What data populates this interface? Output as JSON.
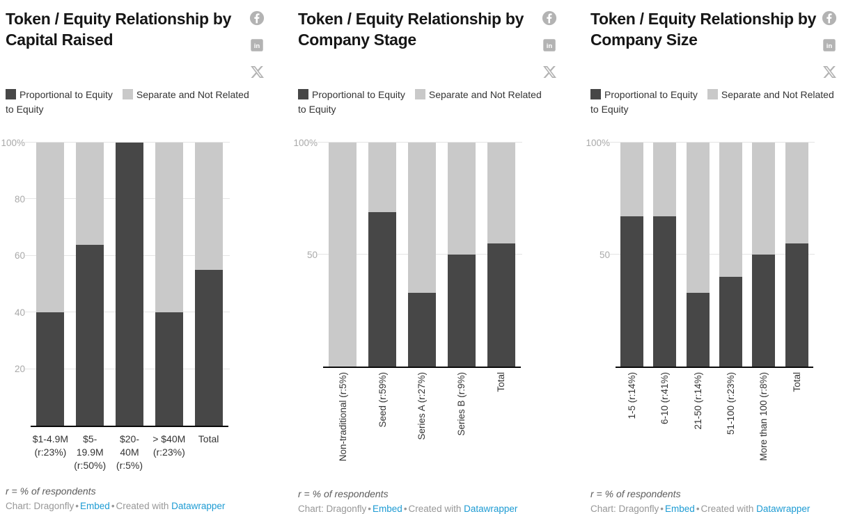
{
  "colors": {
    "proportional_dark": "#474747",
    "separate_light": "#c9c9c9",
    "link_blue": "#1d9bd3",
    "icon_gray": "#b3b3b3"
  },
  "icons": [
    "facebook-share-icon",
    "linkedin-share-icon",
    "x-share-icon"
  ],
  "legend": {
    "proportional": "Proportional to Equity",
    "separate": "Separate and Not Related to Equity"
  },
  "footnote": "r = % of respondents",
  "credit": {
    "source": "Chart: Dragonfly",
    "separator": "•",
    "embed": "Embed",
    "created_with": "Created with",
    "tool": "Datawrapper"
  },
  "chart_data": [
    {
      "type": "bar",
      "stacked": true,
      "title": "Token / Equity Relationship by Capital Raised",
      "ylim": [
        0,
        100
      ],
      "grid": true,
      "legend_position": "top",
      "x_label_rotation": 0,
      "yticks": [
        {
          "v": 20,
          "label": "20"
        },
        {
          "v": 40,
          "label": "40"
        },
        {
          "v": 60,
          "label": "60"
        },
        {
          "v": 80,
          "label": "80"
        },
        {
          "v": 100,
          "label": "100%"
        }
      ],
      "categories": [
        "$1-4.9M (r:23%)",
        "$5-19.9M (r:50%)",
        "$20-40M (r:5%)",
        "> $40M (r:23%)",
        "Total"
      ],
      "series": [
        {
          "name": "Proportional to Equity",
          "values": [
            40,
            64,
            100,
            40,
            55
          ]
        },
        {
          "name": "Separate and Not Related to Equity",
          "values": [
            60,
            36,
            0,
            60,
            45
          ]
        }
      ]
    },
    {
      "type": "bar",
      "stacked": true,
      "title": "Token / Equity Relationship by Company Stage",
      "ylim": [
        0,
        100
      ],
      "grid": true,
      "legend_position": "top",
      "x_label_rotation": 90,
      "yticks": [
        {
          "v": 50,
          "label": "50"
        },
        {
          "v": 100,
          "label": "100%"
        }
      ],
      "categories": [
        "Non-traditional (r:5%)",
        "Seed (r:59%)",
        "Series A (r:27%)",
        "Series B (r:9%)",
        "Total"
      ],
      "series": [
        {
          "name": "Proportional to Equity",
          "values": [
            0,
            69,
            33,
            50,
            55
          ]
        },
        {
          "name": "Separate and Not Related to Equity",
          "values": [
            100,
            31,
            67,
            50,
            45
          ]
        }
      ]
    },
    {
      "type": "bar",
      "stacked": true,
      "title": "Token / Equity Relationship by Company Size",
      "ylim": [
        0,
        100
      ],
      "grid": true,
      "legend_position": "top",
      "x_label_rotation": 90,
      "yticks": [
        {
          "v": 50,
          "label": "50"
        },
        {
          "v": 100,
          "label": "100%"
        }
      ],
      "categories": [
        "1-5 (r:14%)",
        "6-10 (r:41%)",
        "21-50 (r:14%)",
        "51-100 (r:23%)",
        "More than 100 (r:8%)",
        "Total"
      ],
      "series": [
        {
          "name": "Proportional to Equity",
          "values": [
            67,
            67,
            33,
            40,
            50,
            55
          ]
        },
        {
          "name": "Separate and Not Related to Equity",
          "values": [
            33,
            33,
            67,
            60,
            50,
            45
          ]
        }
      ]
    }
  ]
}
